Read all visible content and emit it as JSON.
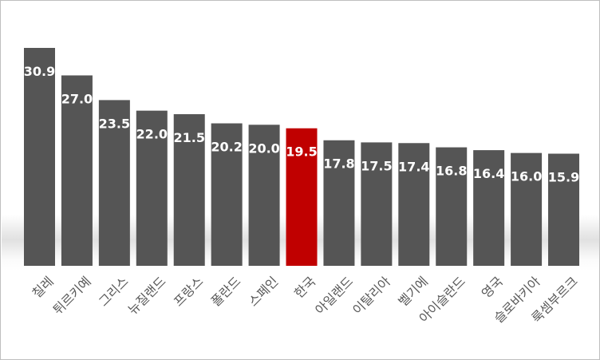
{
  "chart_data": {
    "type": "bar",
    "categories": [
      "칠레",
      "튀르키예",
      "그리스",
      "뉴질랜드",
      "프랑스",
      "폴란드",
      "스페인",
      "한국",
      "아일랜드",
      "이탈리아",
      "벨기에",
      "아이슬란드",
      "영국",
      "슬로바키아",
      "룩셈부르크"
    ],
    "values": [
      30.9,
      27.0,
      23.5,
      22.0,
      21.5,
      20.2,
      20.0,
      19.5,
      17.8,
      17.5,
      17.4,
      16.8,
      16.4,
      16.0,
      15.9
    ],
    "value_labels": [
      "30.9",
      "27.0",
      "23.5",
      "22.0",
      "21.5",
      "20.2",
      "20.0",
      "19.5",
      "17.8",
      "17.5",
      "17.4",
      "16.8",
      "16.4",
      "16.0",
      "15.9"
    ],
    "highlight_index": 7,
    "ylim": [
      0,
      30.9
    ],
    "grid": false,
    "legend": "none",
    "colors": {
      "bar": "#555555",
      "highlight": "#c00000",
      "value_label": "#ffffff",
      "category_label": "#595959"
    }
  }
}
